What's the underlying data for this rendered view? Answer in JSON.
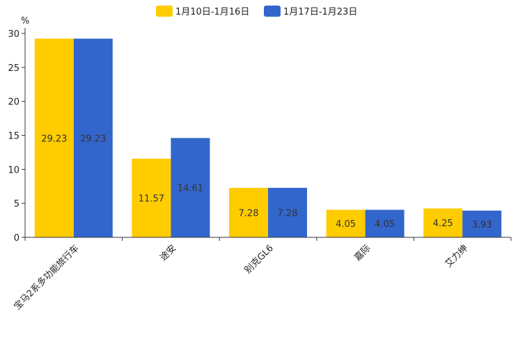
{
  "chart_data": {
    "type": "bar",
    "title": "",
    "ylabel": "%",
    "xlabel": "",
    "ylim": [
      0,
      30
    ],
    "yticks": [
      0,
      5,
      10,
      15,
      20,
      25,
      30
    ],
    "categories": [
      "宝马2系多功能旅行车",
      "途安",
      "别克GL6",
      "嘉际",
      "艾力绅"
    ],
    "series": [
      {
        "name": "1月10日-1月16日",
        "color": "#FFCC00",
        "values": [
          29.23,
          11.57,
          7.28,
          4.05,
          4.25
        ],
        "labels": [
          "29.23",
          "11.57",
          "7.28",
          "4.05",
          "4.25"
        ]
      },
      {
        "name": "1月17日-1月23日",
        "color": "#3366CC",
        "values": [
          29.23,
          14.61,
          7.28,
          4.05,
          3.93
        ],
        "labels": [
          "29.23",
          "14.61",
          "7.28",
          "4.05",
          "3.93"
        ]
      }
    ],
    "legend_position": "top-center",
    "grid": false
  }
}
